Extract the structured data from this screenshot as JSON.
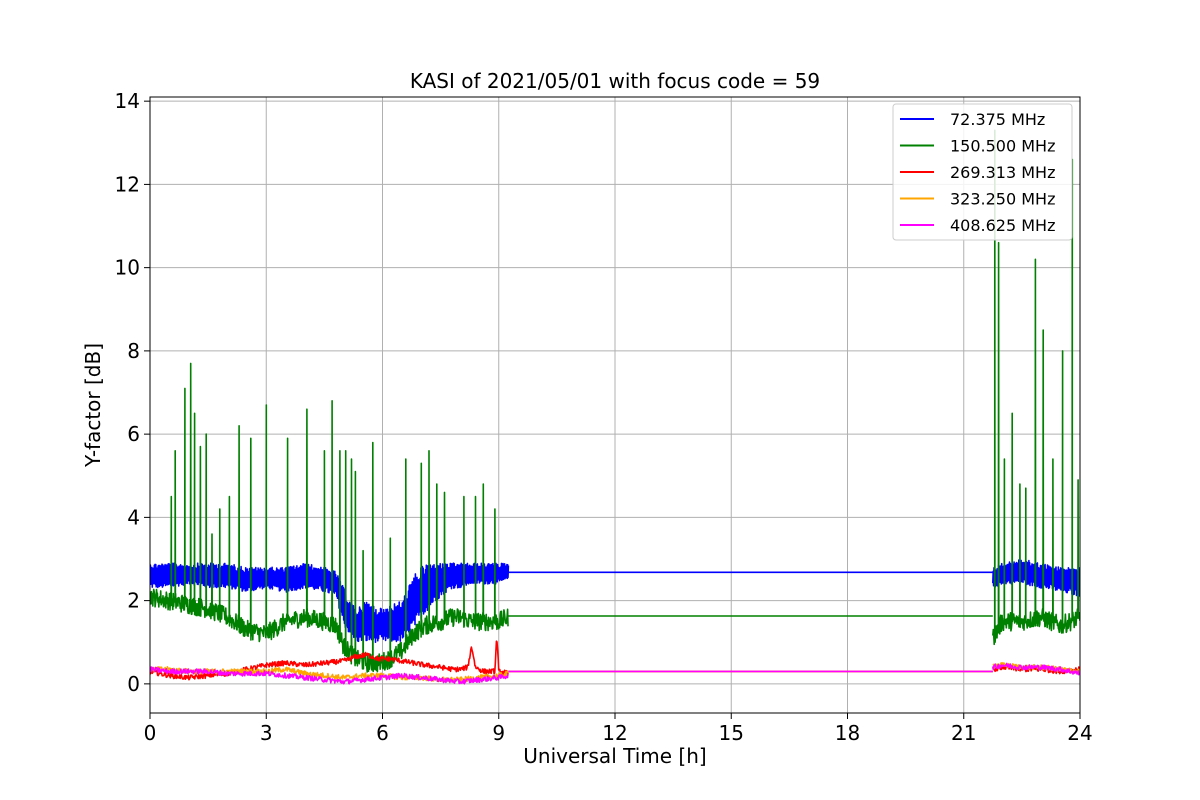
{
  "chart_data": {
    "type": "line",
    "title": "KASI of 2021/05/01 with focus code = 59",
    "xlabel": "Universal Time [h]",
    "ylabel": "Y-factor [dB]",
    "xlim": [
      0,
      24
    ],
    "ylim": [
      -0.7,
      14.1
    ],
    "xticks": [
      0,
      3,
      6,
      9,
      12,
      15,
      18,
      21,
      24
    ],
    "yticks": [
      0,
      2,
      4,
      6,
      8,
      10,
      12,
      14
    ],
    "grid": true,
    "legend_position": "top-right",
    "series": [
      {
        "name": " 72.375 MHz",
        "color": "#0000ff",
        "band_x": [
          0.0,
          0.5,
          1.0,
          1.5,
          2.0,
          2.5,
          3.0,
          3.5,
          4.0,
          4.5,
          4.8,
          5.0,
          5.3,
          5.6,
          5.9,
          6.2,
          6.5,
          6.8,
          7.1,
          7.5,
          7.8,
          8.0,
          8.3,
          8.6,
          9.0,
          9.25
        ],
        "band_lo": [
          2.3,
          2.3,
          2.4,
          2.3,
          2.3,
          2.2,
          2.3,
          2.2,
          2.3,
          2.2,
          2.1,
          1.4,
          1.0,
          1.0,
          1.0,
          1.0,
          1.0,
          1.3,
          1.7,
          2.1,
          2.3,
          2.3,
          2.4,
          2.4,
          2.4,
          2.5
        ],
        "band_hi": [
          2.9,
          2.9,
          2.9,
          2.9,
          2.9,
          2.8,
          2.8,
          2.8,
          2.9,
          2.8,
          2.7,
          2.3,
          1.8,
          2.0,
          1.8,
          1.9,
          2.0,
          2.6,
          2.9,
          2.9,
          2.9,
          2.9,
          2.9,
          2.9,
          2.9,
          2.9
        ],
        "flat": {
          "x": [
            9.25,
            21.75
          ],
          "y": 2.68
        },
        "band2_x": [
          21.75,
          22.0,
          22.5,
          23.0,
          23.5,
          24.0
        ],
        "band2_lo": [
          2.3,
          2.4,
          2.4,
          2.3,
          2.2,
          2.1
        ],
        "band2_hi": [
          2.8,
          2.9,
          3.0,
          2.9,
          2.8,
          2.8
        ]
      },
      {
        "name": "150.500 MHz",
        "color": "#008000",
        "baseline_x": [
          0.0,
          0.5,
          1.0,
          1.5,
          2.0,
          2.5,
          3.0,
          3.5,
          4.0,
          4.5,
          4.8,
          5.0,
          5.3,
          5.6,
          5.9,
          6.2,
          6.5,
          6.8,
          7.1,
          7.5,
          7.8,
          8.0,
          8.3,
          8.6,
          9.0,
          9.25
        ],
        "baseline_y": [
          2.1,
          2.0,
          1.9,
          1.8,
          1.6,
          1.3,
          1.2,
          1.5,
          1.6,
          1.5,
          1.4,
          0.9,
          0.6,
          0.5,
          0.5,
          0.6,
          0.8,
          1.2,
          1.4,
          1.5,
          1.6,
          1.6,
          1.5,
          1.5,
          1.5,
          1.6
        ],
        "spikes_x": [
          0.55,
          0.65,
          0.9,
          1.05,
          1.15,
          1.3,
          1.45,
          1.6,
          1.8,
          2.05,
          2.3,
          2.6,
          3.0,
          3.55,
          4.05,
          4.5,
          4.7,
          4.9,
          5.05,
          5.2,
          5.3,
          5.5,
          5.75,
          6.2,
          6.6,
          7.0,
          7.2,
          7.4,
          7.6,
          8.1,
          8.4,
          8.6,
          8.9
        ],
        "spikes_y": [
          4.5,
          5.6,
          7.1,
          7.7,
          6.5,
          5.7,
          6.0,
          3.6,
          4.2,
          4.5,
          6.2,
          5.9,
          6.7,
          5.9,
          6.6,
          5.6,
          6.8,
          5.6,
          5.6,
          5.4,
          5.1,
          3.2,
          5.8,
          3.5,
          5.4,
          5.3,
          5.6,
          4.8,
          4.6,
          4.5,
          4.5,
          4.8,
          4.2
        ],
        "flat": {
          "x": [
            9.25,
            21.75
          ],
          "y": 1.63
        },
        "baseline2_x": [
          21.75,
          22.0,
          22.5,
          23.0,
          23.5,
          24.0
        ],
        "baseline2_y": [
          1.1,
          1.5,
          1.5,
          1.6,
          1.4,
          1.6
        ],
        "spikes2_x": [
          21.8,
          21.9,
          22.05,
          22.25,
          22.45,
          22.6,
          22.85,
          23.05,
          23.3,
          23.55,
          23.8,
          23.95
        ],
        "spikes2_y": [
          13.3,
          10.6,
          5.4,
          6.5,
          4.8,
          4.7,
          10.2,
          8.5,
          5.4,
          8.0,
          12.6,
          4.9
        ]
      },
      {
        "name": "269.313 MHz",
        "color": "#ff0000",
        "x": [
          0.0,
          0.5,
          1.0,
          1.5,
          2.0,
          2.5,
          3.0,
          3.5,
          4.0,
          4.5,
          5.0,
          5.3,
          5.6,
          5.9,
          6.2,
          6.5,
          6.8,
          7.1,
          7.5,
          7.8,
          8.0,
          8.2,
          8.3,
          8.4,
          8.6,
          8.9,
          8.95,
          9.0,
          9.25
        ],
        "y": [
          0.3,
          0.2,
          0.15,
          0.2,
          0.25,
          0.35,
          0.45,
          0.5,
          0.45,
          0.5,
          0.55,
          0.65,
          0.7,
          0.6,
          0.6,
          0.55,
          0.5,
          0.45,
          0.4,
          0.35,
          0.35,
          0.4,
          0.9,
          0.4,
          0.3,
          0.3,
          1.15,
          0.3,
          0.25
        ],
        "flat": {
          "x": [
            9.25,
            21.75
          ],
          "y": 0.3
        },
        "x2": [
          21.75,
          22.0,
          22.5,
          23.0,
          23.5,
          24.0
        ],
        "y2": [
          0.35,
          0.4,
          0.35,
          0.35,
          0.3,
          0.35
        ]
      },
      {
        "name": "323.250 MHz",
        "color": "#ffa500",
        "x": [
          0.0,
          0.5,
          1.0,
          1.5,
          2.0,
          2.5,
          3.0,
          3.5,
          4.0,
          4.5,
          5.0,
          5.5,
          6.0,
          6.5,
          7.0,
          7.5,
          8.0,
          8.5,
          9.0,
          9.25
        ],
        "y": [
          0.35,
          0.35,
          0.3,
          0.3,
          0.3,
          0.3,
          0.3,
          0.35,
          0.25,
          0.2,
          0.15,
          0.2,
          0.2,
          0.15,
          0.15,
          0.1,
          0.1,
          0.15,
          0.2,
          0.25
        ],
        "flat": {
          "x": [
            9.25,
            21.75
          ],
          "y": 0.3
        },
        "x2": [
          21.75,
          22.0,
          22.5,
          23.0,
          23.5,
          24.0
        ],
        "y2": [
          0.45,
          0.45,
          0.4,
          0.4,
          0.35,
          0.3
        ]
      },
      {
        "name": "408.625 MHz",
        "color": "#ff00ff",
        "x": [
          0.0,
          0.5,
          1.0,
          1.5,
          2.0,
          2.5,
          3.0,
          3.5,
          4.0,
          4.5,
          5.0,
          5.5,
          6.0,
          6.5,
          7.0,
          7.5,
          8.0,
          8.5,
          9.0,
          9.25
        ],
        "y": [
          0.35,
          0.3,
          0.3,
          0.3,
          0.25,
          0.25,
          0.25,
          0.2,
          0.15,
          0.1,
          0.05,
          0.1,
          0.15,
          0.2,
          0.15,
          0.1,
          0.05,
          0.1,
          0.15,
          0.2
        ],
        "flat": {
          "x": [
            9.25,
            21.75
          ],
          "y": 0.3
        },
        "x2": [
          21.75,
          22.0,
          22.5,
          23.0,
          23.5,
          24.0
        ],
        "y2": [
          0.4,
          0.45,
          0.4,
          0.4,
          0.35,
          0.25
        ]
      }
    ]
  }
}
